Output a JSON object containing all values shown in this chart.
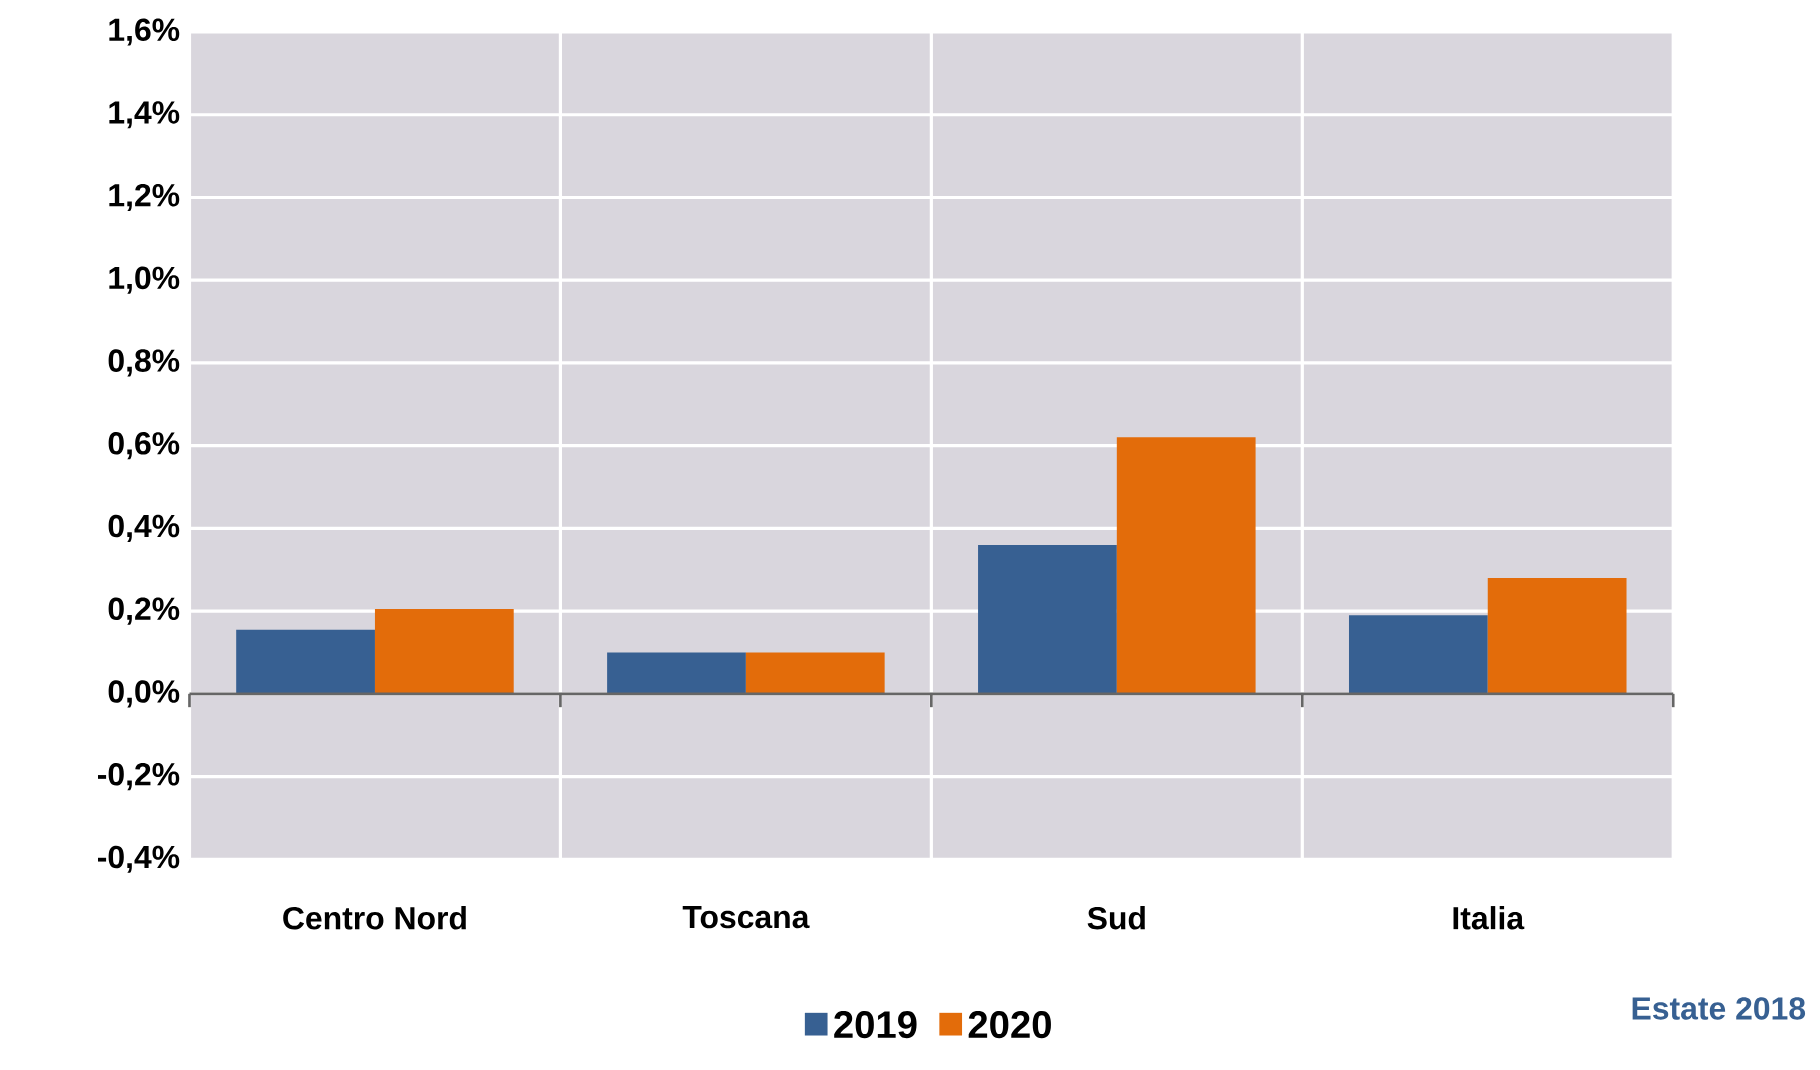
{
  "chart_data": {
    "type": "bar",
    "categories": [
      "Centro Nord",
      "Toscana",
      "Sud",
      "Italia"
    ],
    "series": [
      {
        "name": "2019",
        "color": "#376092",
        "values": [
          0.155,
          0.1,
          0.36,
          0.19
        ]
      },
      {
        "name": "2020",
        "color": "#e36c0a",
        "values": [
          0.205,
          0.1,
          0.62,
          0.28
        ]
      }
    ],
    "ylim": [
      -0.4,
      1.6
    ],
    "yticks": [
      {
        "value": -0.4,
        "label": "-0,4%"
      },
      {
        "value": -0.2,
        "label": "-0,2%"
      },
      {
        "value": 0,
        "label": "0,0%"
      },
      {
        "value": 0.2,
        "label": "0,2%"
      },
      {
        "value": 0.4,
        "label": "0,4%"
      },
      {
        "value": 0.6,
        "label": "0,6%"
      },
      {
        "value": 0.8,
        "label": "0,8%"
      },
      {
        "value": 1.0,
        "label": "1,0%"
      },
      {
        "value": 1.2,
        "label": "1,2%"
      },
      {
        "value": 1.4,
        "label": "1,4%"
      },
      {
        "value": 1.6,
        "label": "1,6%"
      }
    ],
    "grid": true,
    "legend": "bottom",
    "annotations": [
      "Estate 2018"
    ]
  }
}
